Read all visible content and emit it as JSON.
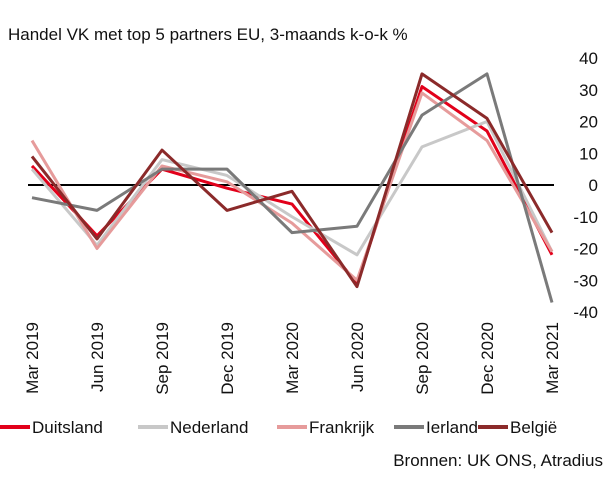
{
  "chart_data": {
    "type": "line",
    "title": "Handel VK met top 5 partners EU, 3-maands k-o-k %",
    "source": "Bronnen: UK ONS, Atradius",
    "categories": [
      "Mar 2019",
      "Jun 2019",
      "Sep 2019",
      "Dec 2019",
      "Mar 2020",
      "Jun 2020",
      "Sep 2020",
      "Dec 2020",
      "Mar 2021"
    ],
    "series": [
      {
        "name": "Duitsland",
        "color": "#e2001a",
        "values": [
          6,
          -16,
          5,
          -1,
          -6,
          -31,
          31,
          17,
          -22
        ]
      },
      {
        "name": "Nederland",
        "color": "#c8c8c8",
        "values": [
          5,
          -19,
          8,
          3,
          -10,
          -22,
          12,
          20,
          -21
        ]
      },
      {
        "name": "Frankrijk",
        "color": "#e69b9b",
        "values": [
          14,
          -20,
          6,
          1,
          -12,
          -30,
          29,
          14,
          -21
        ]
      },
      {
        "name": "Ierland",
        "color": "#7a7a7a",
        "values": [
          -4,
          -8,
          5,
          5,
          -15,
          -13,
          22,
          35,
          -37
        ]
      },
      {
        "name": "België",
        "color": "#8b2a2a",
        "values": [
          9,
          -17,
          11,
          -8,
          -2,
          -32,
          35,
          21,
          -15
        ]
      }
    ],
    "ylim": [
      -40,
      40
    ],
    "yticks": [
      -40,
      -30,
      -20,
      -10,
      0,
      10,
      20,
      30,
      40
    ],
    "y_axis_side": "right",
    "zero_line": true,
    "grid": false,
    "legend": "bottom"
  }
}
